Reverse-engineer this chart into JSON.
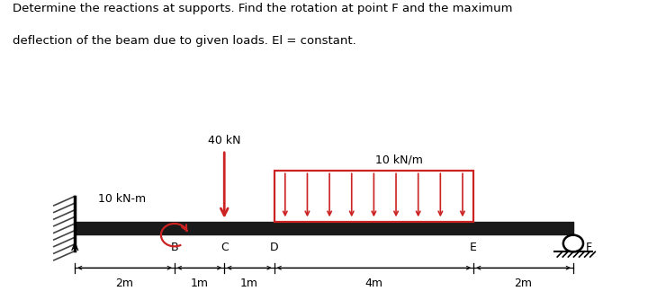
{
  "title_line1": "Determine the reactions at supports. Find the rotation at point F and the maximum",
  "title_line2": "deflection of the beam due to given loads. El = constant.",
  "bg_color": "#ffffff",
  "beam_color": "#1a1a1a",
  "load_color": "#cc2222",
  "wall_color": "#444444",
  "point_labels": [
    "A",
    "B",
    "C",
    "D",
    "E",
    "F"
  ],
  "point_x": [
    0,
    2,
    3,
    4,
    8,
    10
  ],
  "dim_labels": [
    "2m",
    "1m",
    "1m",
    "4m",
    "2m"
  ],
  "dim_positions": [
    1,
    2.5,
    3.5,
    6,
    9
  ],
  "load_40kN_x": 3,
  "load_40kN_label": "40 kN",
  "udl_start": 4,
  "udl_end": 8,
  "udl_label": "10 kN/m",
  "moment_label": "10 kN-m",
  "moment_x": 2,
  "xlim": [
    -1.5,
    11.5
  ],
  "ylim": [
    -1.5,
    3.2
  ]
}
